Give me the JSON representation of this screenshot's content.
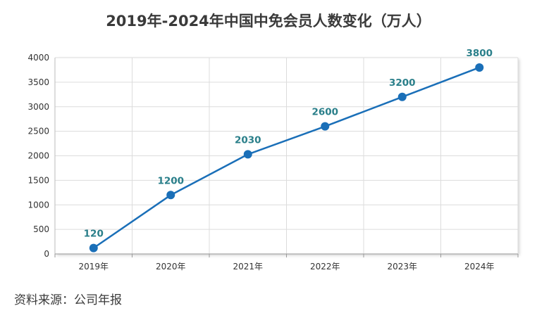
{
  "chart_data": {
    "type": "line",
    "title": "2019年-2024年中国中免会员人数变化（万人）",
    "categories": [
      "2019年",
      "2020年",
      "2021年",
      "2022年",
      "2023年",
      "2024年"
    ],
    "series": [
      {
        "values": [
          120,
          1200,
          2030,
          2600,
          3200,
          3800
        ]
      }
    ],
    "data_labels": [
      "120",
      "1200",
      "2030",
      "2600",
      "3200",
      "3800"
    ],
    "y_ticks": [
      "0",
      "500",
      "1000",
      "1500",
      "2000",
      "2500",
      "3000",
      "3500",
      "4000"
    ],
    "ylim": [
      0,
      4000
    ],
    "grid": true,
    "line_color": "#1a6fb8",
    "label_color": "#2a7f8a"
  },
  "source": "资料来源：公司年报"
}
